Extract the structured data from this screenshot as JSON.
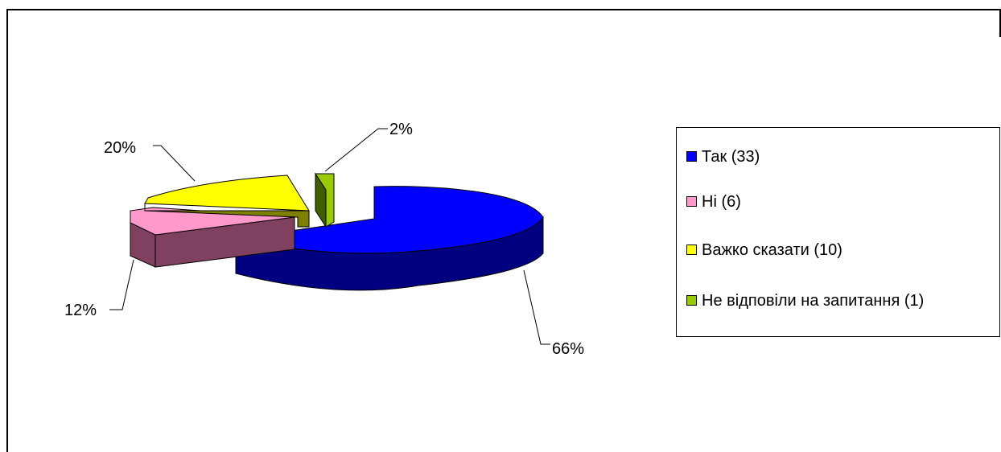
{
  "chart_data": {
    "type": "pie",
    "style": "3d-exploded",
    "categories": [
      "Так (33)",
      "Ні (6)",
      "Важко сказати (10)",
      "Не відповіли на запитання (1)"
    ],
    "values": [
      33,
      6,
      10,
      1
    ],
    "percent_labels": [
      "66%",
      "12%",
      "20%",
      "2%"
    ],
    "colors": [
      "#0000ff",
      "#ff99cc",
      "#ffff00",
      "#99cc00"
    ],
    "legend_position": "right"
  }
}
